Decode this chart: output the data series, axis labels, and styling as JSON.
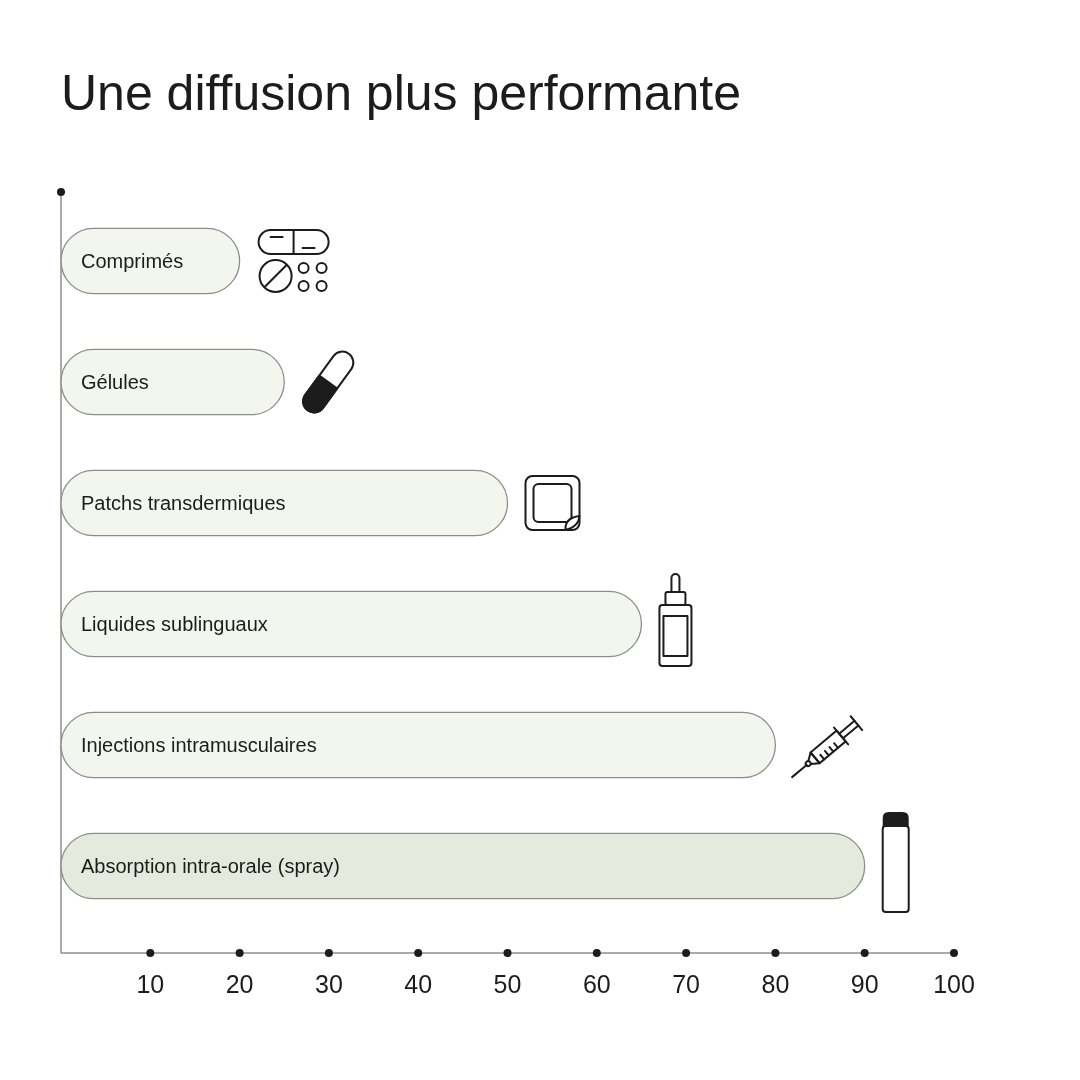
{
  "chart_data": {
    "type": "bar",
    "orientation": "horizontal",
    "title": "Une diffusion plus performante",
    "categories": [
      "Comprimés",
      "Gélules",
      "Patchs transdermiques",
      "Liquides sublinguaux",
      "Injections intramusculaires",
      "Absorption intra-orale (spray)"
    ],
    "values": [
      20,
      25,
      50,
      65,
      80,
      90
    ],
    "colors": [
      "#f3f5ef",
      "#f3f5ef",
      "#f3f5ef",
      "#f3f5ef",
      "#f3f5ef",
      "#e6e9dd"
    ],
    "xlim": [
      0,
      100
    ],
    "xticks": [
      10,
      20,
      30,
      40,
      50,
      60,
      70,
      80,
      90,
      100
    ]
  }
}
